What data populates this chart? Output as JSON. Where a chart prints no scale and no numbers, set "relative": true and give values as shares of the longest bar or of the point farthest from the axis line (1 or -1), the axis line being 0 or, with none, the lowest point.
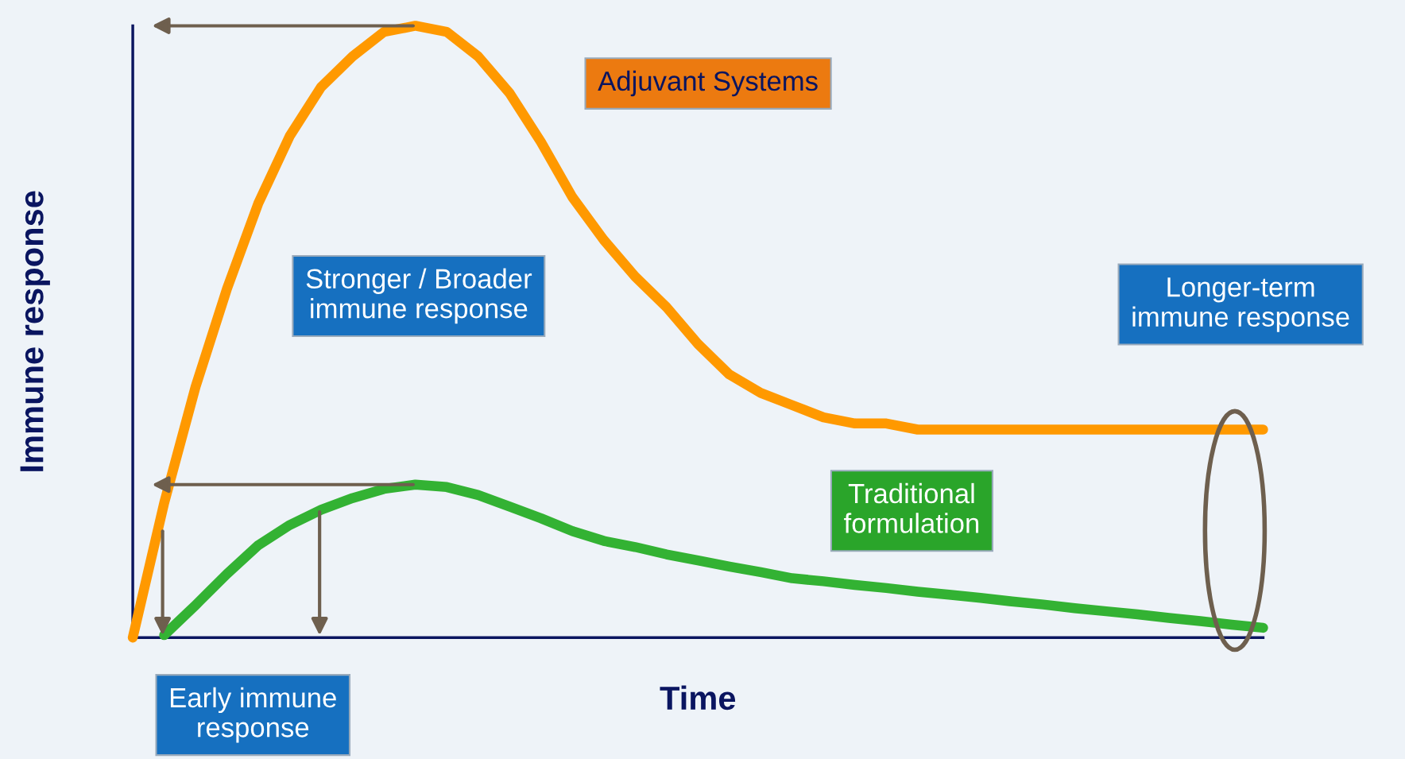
{
  "chart_data": {
    "type": "line",
    "relative": true,
    "xlabel": "Time",
    "ylabel": "Immune response",
    "legend": false,
    "grid": false,
    "line_style": "solid",
    "categories": [
      null,
      null,
      null,
      null,
      null,
      null,
      null,
      null,
      null,
      null,
      null,
      null,
      null,
      null,
      null,
      null,
      null,
      null,
      null,
      null,
      null,
      null,
      null,
      null,
      null,
      null,
      null,
      null,
      null,
      null,
      null,
      null,
      null,
      null,
      null,
      null,
      null
    ],
    "series": [
      {
        "name": "Adjuvant Systems",
        "color": "#ff9900",
        "values": [
          0,
          0.22,
          0.41,
          0.57,
          0.71,
          0.82,
          0.9,
          0.95,
          0.99,
          1,
          0.99,
          0.95,
          0.89,
          0.81,
          0.72,
          0.65,
          0.59,
          0.54,
          0.48,
          0.43,
          0.4,
          0.38,
          0.36,
          0.35,
          0.35,
          0.34,
          0.34,
          0.34,
          0.34,
          0.34,
          0.34,
          0.34,
          0.34,
          0.34,
          0.34,
          0.34,
          0.34
        ]
      },
      {
        "name": "Traditional\nformulation",
        "color": "#33b233",
        "values": [
          null,
          0.004,
          0.053,
          0.104,
          0.151,
          0.184,
          0.209,
          0.228,
          0.243,
          0.25,
          0.246,
          0.233,
          0.214,
          0.195,
          0.174,
          0.158,
          0.148,
          0.136,
          0.126,
          0.116,
          0.107,
          0.097,
          0.092,
          0.086,
          0.081,
          0.075,
          0.07,
          0.065,
          0.059,
          0.054,
          0.048,
          0.043,
          0.038,
          0.032,
          0.027,
          0.021,
          0.016
        ]
      }
    ],
    "annotations": [
      "Stronger / Broader\nimmune response",
      "Longer-term\nimmune response",
      "Early immune\nresponse"
    ]
  }
}
